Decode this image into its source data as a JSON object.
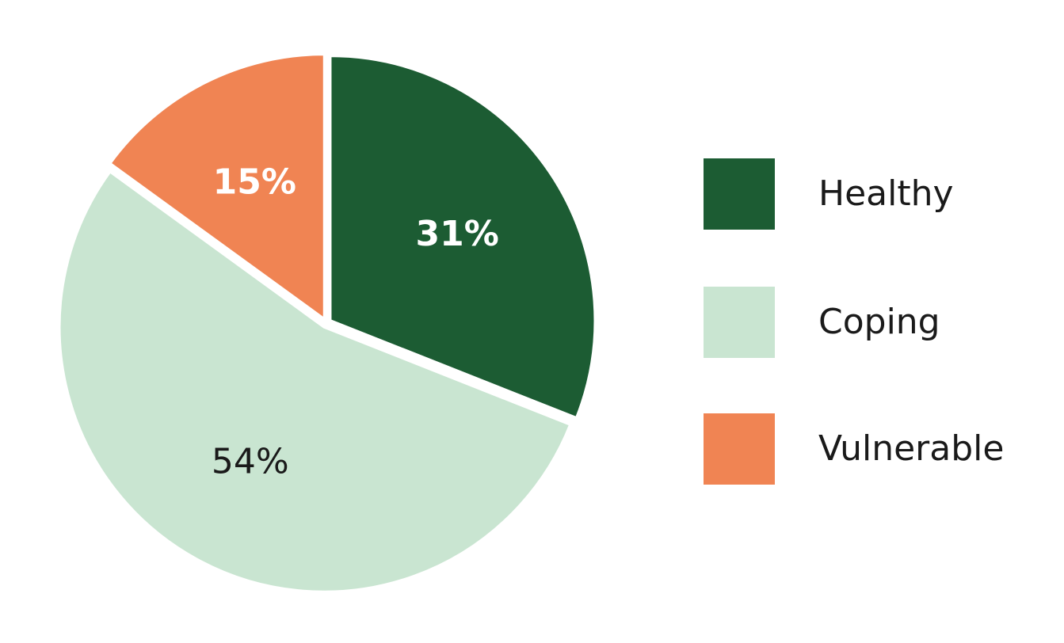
{
  "chart_data": {
    "type": "pie",
    "slices": [
      {
        "label": "Healthy",
        "value": 31,
        "display": "31%",
        "color": "#1c5c33",
        "text_color": "#ffffff",
        "bold": true
      },
      {
        "label": "Coping",
        "value": 54,
        "display": "54%",
        "color": "#c9e5d1",
        "text_color": "#1a1a1a",
        "bold": false
      },
      {
        "label": "Vulnerable",
        "value": 15,
        "display": "15%",
        "color": "#f08453",
        "text_color": "#ffffff",
        "bold": true
      }
    ],
    "legend": {
      "placement": "right",
      "items": [
        {
          "label": "Healthy",
          "color": "#1c5c33"
        },
        {
          "label": "Coping",
          "color": "#c9e5d1"
        },
        {
          "label": "Vulnerable",
          "color": "#f08453"
        }
      ]
    }
  }
}
